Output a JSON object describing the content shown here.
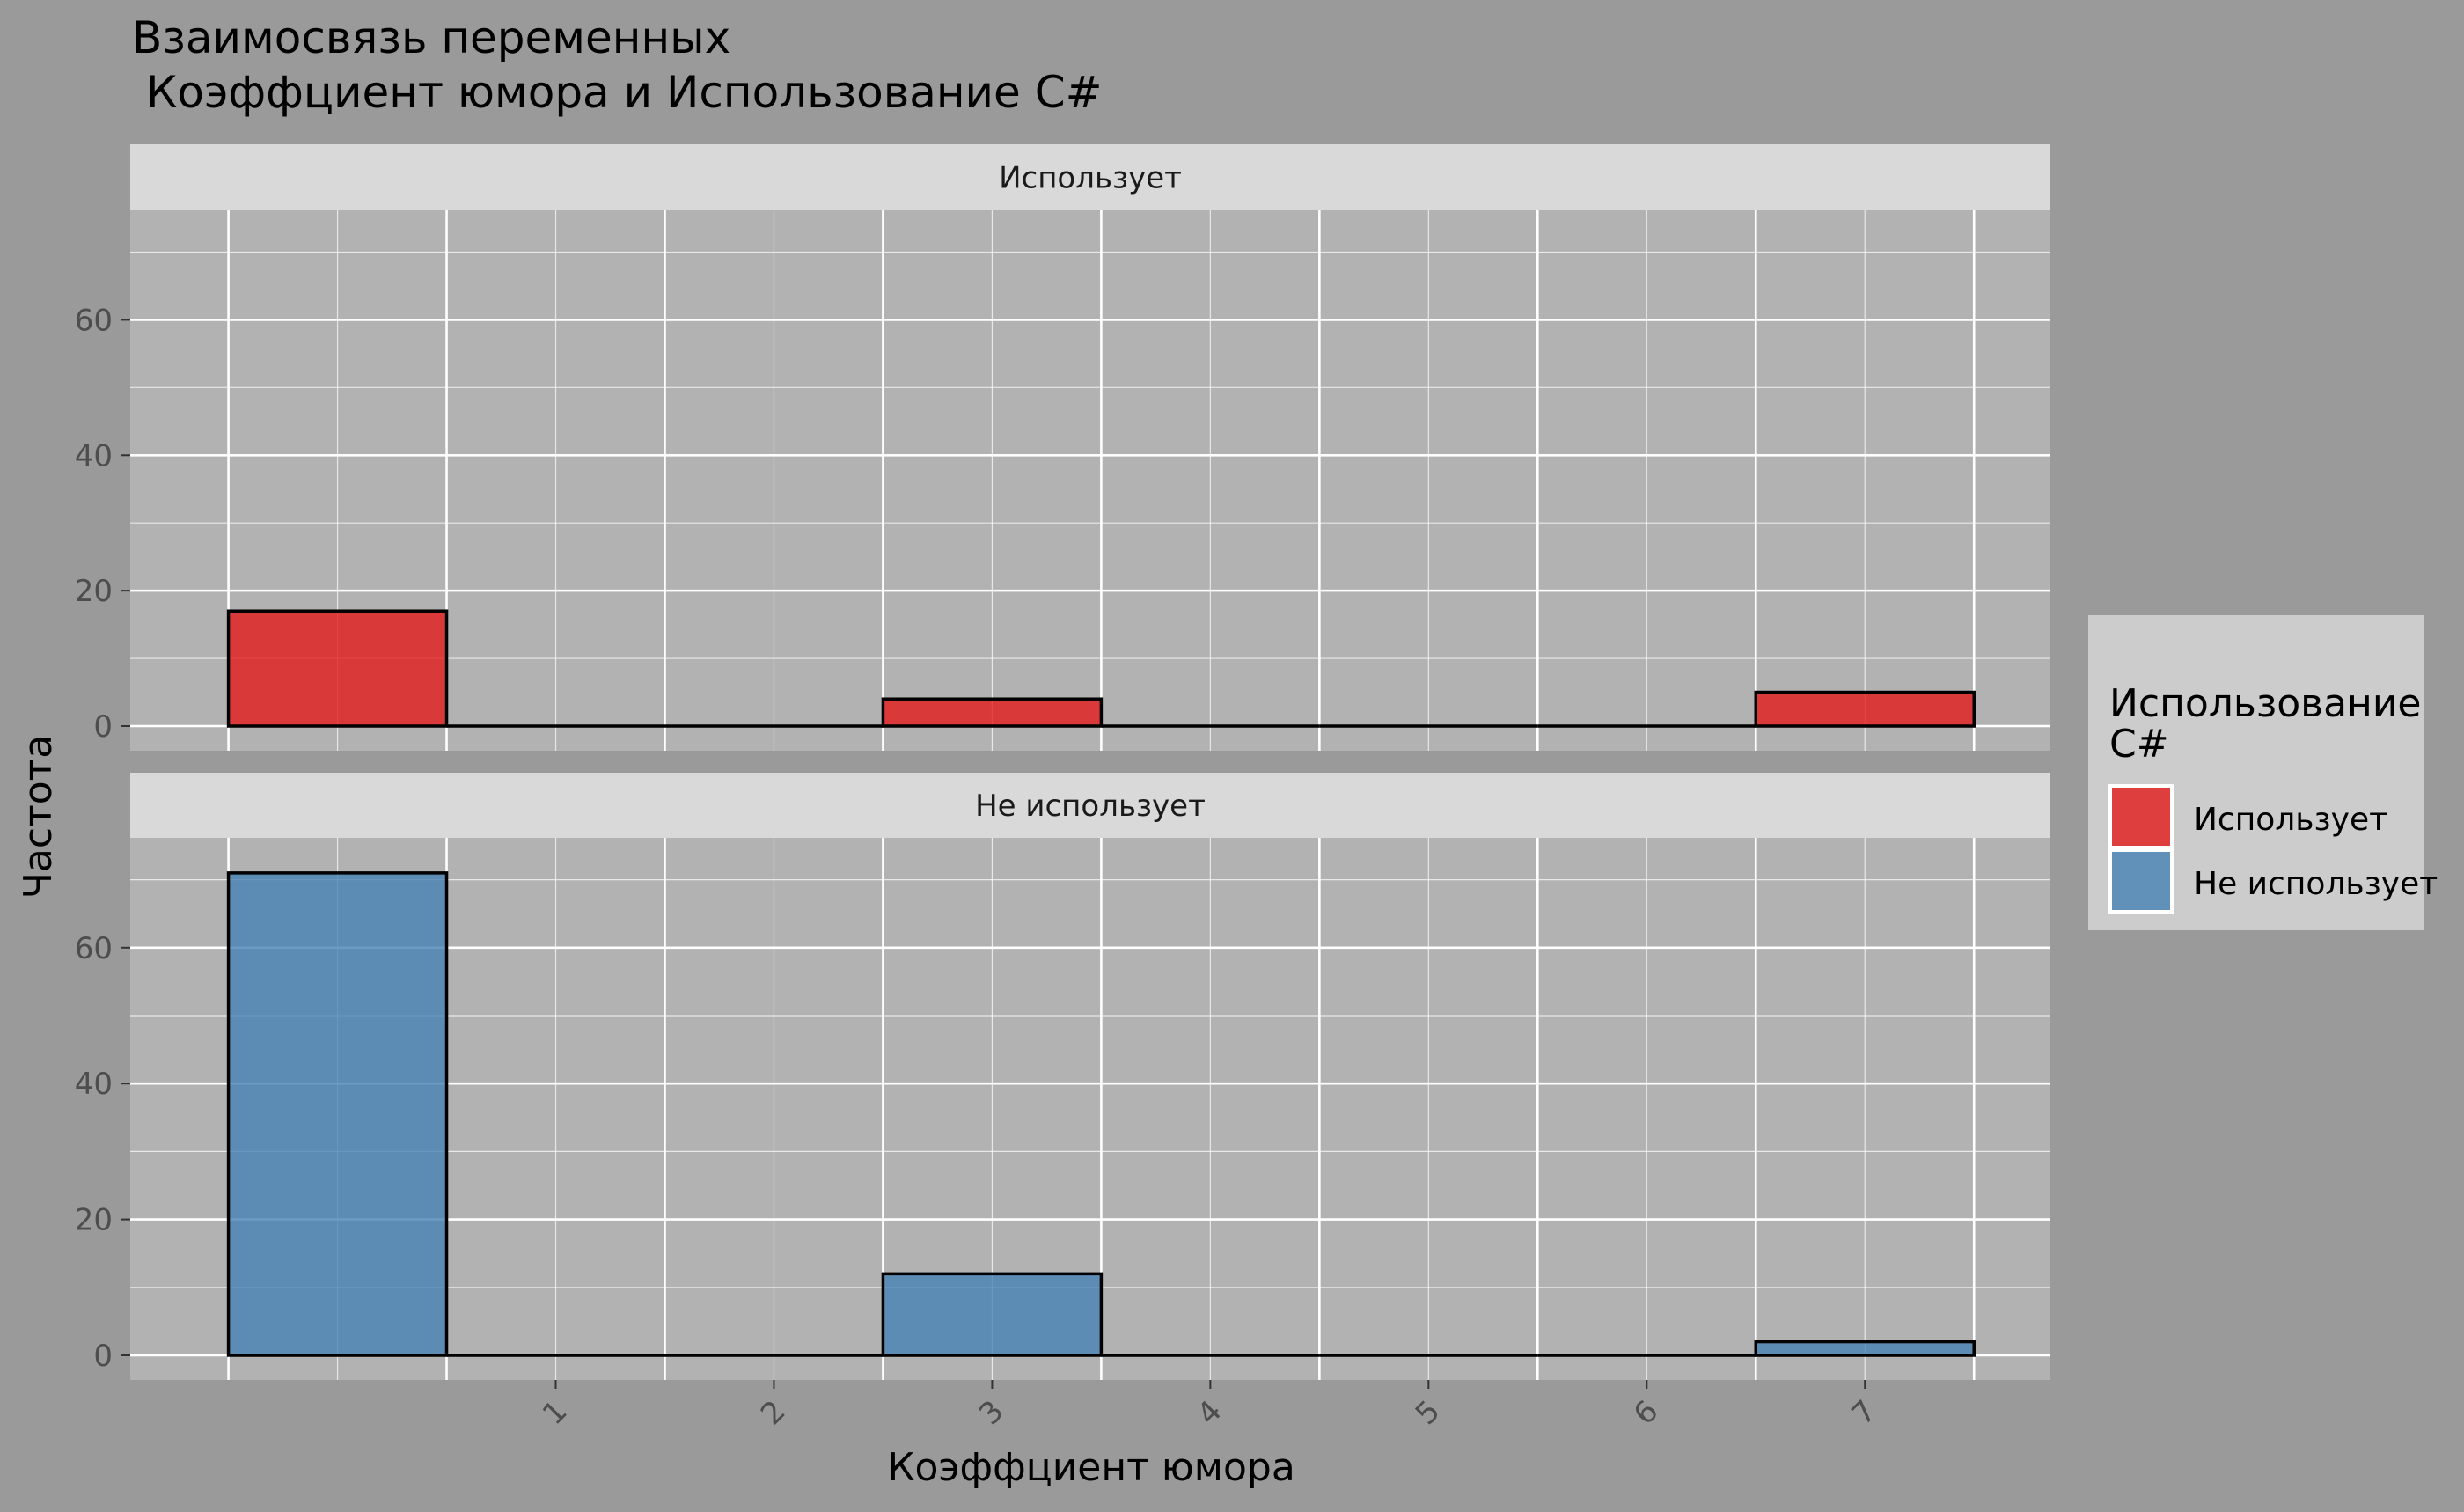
{
  "chart_data": {
    "type": "bar",
    "title_line1": "Взаимосвязь переменных",
    "title_line2": " Коэффциент юмора и Использование C#",
    "xlabel": "Коэффциент юмора",
    "ylabel": "Частота",
    "x_ticks": [
      "1",
      "2",
      "3",
      "4",
      "5",
      "6",
      "7"
    ],
    "y_ticks": [
      "0",
      "20",
      "40",
      "60"
    ],
    "ylim": [
      0,
      75
    ],
    "xlim": [
      -0.95,
      7.85
    ],
    "bin_width": 1,
    "legend": {
      "title_line1": "Использование",
      "title_line2": "C#",
      "position": "right"
    },
    "facets": [
      {
        "label": "Использует",
        "color": "#e41a1c",
        "bins": [
          {
            "x": 0,
            "value": 17
          },
          {
            "x": 1,
            "value": 0
          },
          {
            "x": 2,
            "value": 0
          },
          {
            "x": 3,
            "value": 4
          },
          {
            "x": 4,
            "value": 0
          },
          {
            "x": 5,
            "value": 0
          },
          {
            "x": 6,
            "value": 0
          },
          {
            "x": 7,
            "value": 5
          }
        ]
      },
      {
        "label": "Не использует",
        "color": "#4682b4",
        "bins": [
          {
            "x": 0,
            "value": 71
          },
          {
            "x": 1,
            "value": 0
          },
          {
            "x": 2,
            "value": 0
          },
          {
            "x": 3,
            "value": 12
          },
          {
            "x": 4,
            "value": 0
          },
          {
            "x": 5,
            "value": 0
          },
          {
            "x": 6,
            "value": 0
          },
          {
            "x": 7,
            "value": 2
          }
        ]
      }
    ],
    "colors": {
      "background": "#9a9a9a",
      "panel": "#b2b2b2",
      "strip": "#d9d9d9",
      "legend_bg": "#cccccc",
      "grid": "#ffffff"
    }
  }
}
